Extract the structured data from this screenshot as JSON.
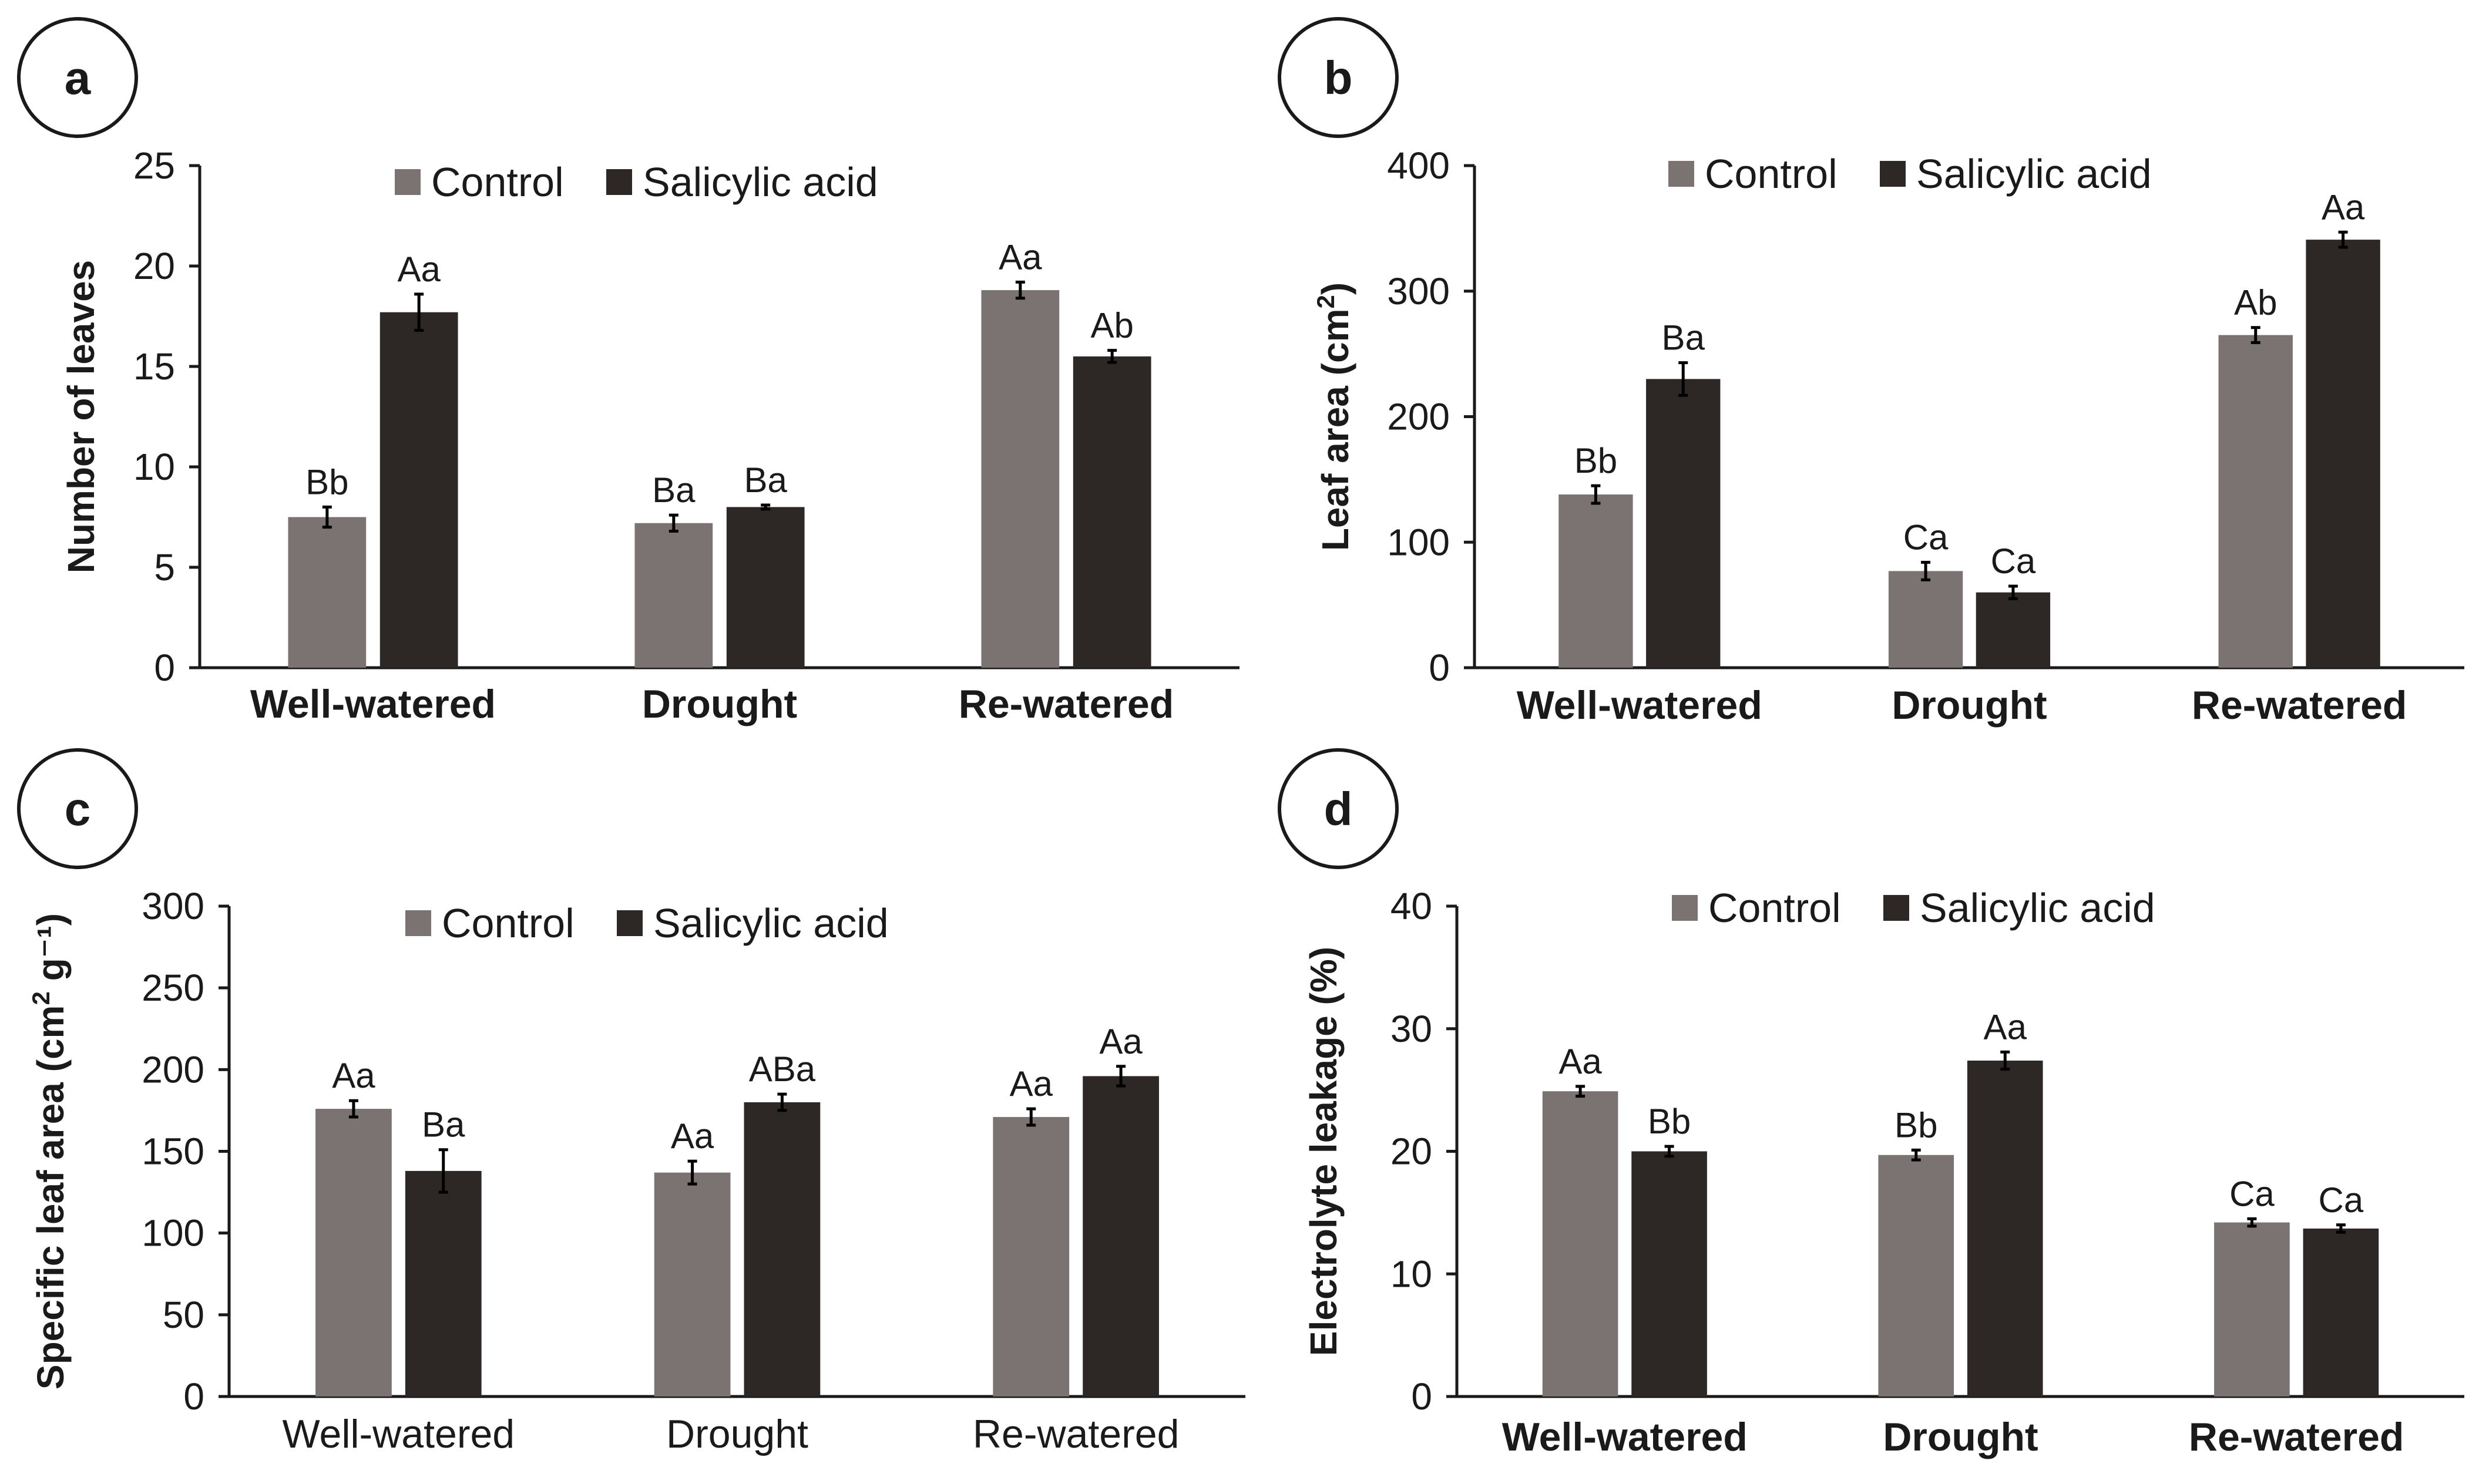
{
  "figure": {
    "legend": [
      "Control",
      "Salicylic acid"
    ],
    "colors": {
      "control": "#7a7372",
      "salicylic": "#2d2826",
      "axis": "#1a1a1a"
    }
  },
  "chart_data": [
    {
      "type": "bar",
      "panel": "a",
      "ylabel": "Number of leaves",
      "ylabel_sup": "",
      "ylabel_tail": "",
      "ylim": [
        0,
        25
      ],
      "yticks": [
        0,
        5,
        10,
        15,
        20,
        25
      ],
      "categories": [
        "Well-watered",
        "Drought",
        "Re-watered"
      ],
      "category_bold": true,
      "series": [
        {
          "name": "Control",
          "values": [
            7.5,
            7.2,
            18.8
          ],
          "errors": [
            0.5,
            0.4,
            0.4
          ],
          "labels": [
            "Bb",
            "Ba",
            "Aa"
          ]
        },
        {
          "name": "Salicylic acid",
          "values": [
            17.7,
            8.0,
            15.5
          ],
          "errors": [
            0.9,
            0.1,
            0.3
          ],
          "labels": [
            "Aa",
            "Ba",
            "Ab"
          ]
        }
      ]
    },
    {
      "type": "bar",
      "panel": "b",
      "ylabel": "Leaf area (cm",
      "ylabel_sup": "2",
      "ylabel_tail": ")",
      "ylim": [
        0,
        400
      ],
      "yticks": [
        0,
        100,
        200,
        300,
        400
      ],
      "categories": [
        "Well-watered",
        "Drought",
        "Re-watered"
      ],
      "category_bold": true,
      "series": [
        {
          "name": "Control",
          "values": [
            138,
            77,
            265
          ],
          "errors": [
            7,
            7,
            6
          ],
          "labels": [
            "Bb",
            "Ca",
            "Ab"
          ]
        },
        {
          "name": "Salicylic acid",
          "values": [
            230,
            60,
            341
          ],
          "errors": [
            13,
            5,
            6
          ],
          "labels": [
            "Ba",
            "Ca",
            "Aa"
          ]
        }
      ]
    },
    {
      "type": "bar",
      "panel": "c",
      "ylabel": "Specific leaf area (cm",
      "ylabel_sup": "2",
      "ylabel_tail": " g⁻¹)",
      "ylim": [
        0,
        300
      ],
      "yticks": [
        0,
        50,
        100,
        150,
        200,
        250,
        300
      ],
      "categories": [
        "Well-watered",
        "Drought",
        "Re-watered"
      ],
      "category_bold": false,
      "series": [
        {
          "name": "Control",
          "values": [
            176,
            137,
            171
          ],
          "errors": [
            5,
            7,
            5
          ],
          "labels": [
            "Aa",
            "Aa",
            "Aa"
          ]
        },
        {
          "name": "Salicylic acid",
          "values": [
            138,
            180,
            196
          ],
          "errors": [
            13,
            5,
            6
          ],
          "labels": [
            "Ba",
            "ABa",
            "Aa"
          ]
        }
      ]
    },
    {
      "type": "bar",
      "panel": "d",
      "ylabel": "Electrolyte leakage (%)",
      "ylabel_sup": "",
      "ylabel_tail": "",
      "ylim": [
        0,
        40
      ],
      "yticks": [
        0,
        10,
        20,
        30,
        40
      ],
      "categories": [
        "Well-watered",
        "Drought",
        "Re-watered"
      ],
      "category_bold": true,
      "series": [
        {
          "name": "Control",
          "values": [
            24.9,
            19.7,
            14.2
          ],
          "errors": [
            0.4,
            0.4,
            0.3
          ],
          "labels": [
            "Aa",
            "Bb",
            "Ca"
          ]
        },
        {
          "name": "Salicylic acid",
          "values": [
            20.0,
            27.4,
            13.7
          ],
          "errors": [
            0.4,
            0.7,
            0.3
          ],
          "labels": [
            "Bb",
            "Aa",
            "Ca"
          ]
        }
      ]
    }
  ]
}
